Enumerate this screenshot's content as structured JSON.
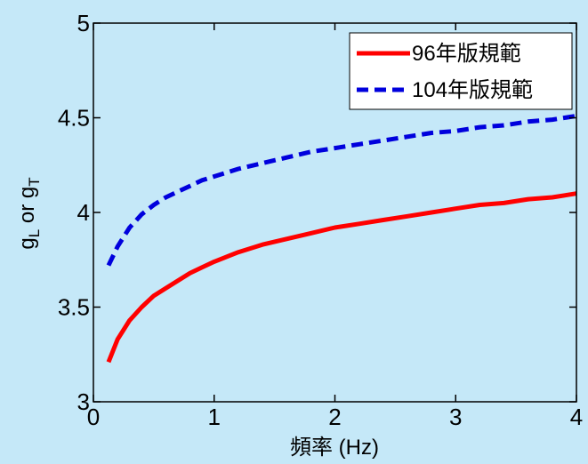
{
  "chart_data": {
    "type": "line",
    "title": "",
    "xlabel": "頻率 (Hz)",
    "ylabel_parts": {
      "base1": "g",
      "sub1": "L",
      "mid": " or ",
      "base2": "g",
      "sub2": "T"
    },
    "xlim": [
      0,
      4
    ],
    "ylim": [
      3,
      5
    ],
    "xticks": [
      0,
      1,
      2,
      3,
      4
    ],
    "xtick_labels": [
      "0",
      "1",
      "2",
      "3",
      "4"
    ],
    "yticks": [
      3,
      3.5,
      4,
      4.5,
      5
    ],
    "ytick_labels": [
      "3",
      "3.5",
      "4",
      "4.5",
      "5"
    ],
    "grid": false,
    "legend_position": "top-right",
    "series": [
      {
        "name": "96年版規範",
        "color": "#ff0000",
        "style": "solid",
        "x": [
          0.125,
          0.2,
          0.3,
          0.4,
          0.5,
          0.6,
          0.7,
          0.8,
          0.9,
          1.0,
          1.2,
          1.4,
          1.6,
          1.8,
          2.0,
          2.2,
          2.4,
          2.6,
          2.8,
          3.0,
          3.2,
          3.4,
          3.6,
          3.8,
          4.0
        ],
        "y": [
          3.21,
          3.33,
          3.43,
          3.5,
          3.56,
          3.6,
          3.64,
          3.68,
          3.71,
          3.74,
          3.79,
          3.83,
          3.86,
          3.89,
          3.92,
          3.94,
          3.96,
          3.98,
          4.0,
          4.02,
          4.04,
          4.05,
          4.07,
          4.08,
          4.1
        ]
      },
      {
        "name": "104年版規範",
        "color": "#0000dd",
        "style": "dashed",
        "x": [
          0.125,
          0.2,
          0.3,
          0.4,
          0.5,
          0.6,
          0.7,
          0.8,
          0.9,
          1.0,
          1.2,
          1.4,
          1.6,
          1.8,
          2.0,
          2.2,
          2.4,
          2.6,
          2.8,
          3.0,
          3.2,
          3.4,
          3.6,
          3.8,
          4.0
        ],
        "y": [
          3.72,
          3.82,
          3.92,
          3.99,
          4.04,
          4.08,
          4.11,
          4.14,
          4.17,
          4.19,
          4.23,
          4.26,
          4.29,
          4.32,
          4.34,
          4.36,
          4.38,
          4.4,
          4.42,
          4.43,
          4.45,
          4.46,
          4.48,
          4.49,
          4.51
        ]
      }
    ]
  }
}
